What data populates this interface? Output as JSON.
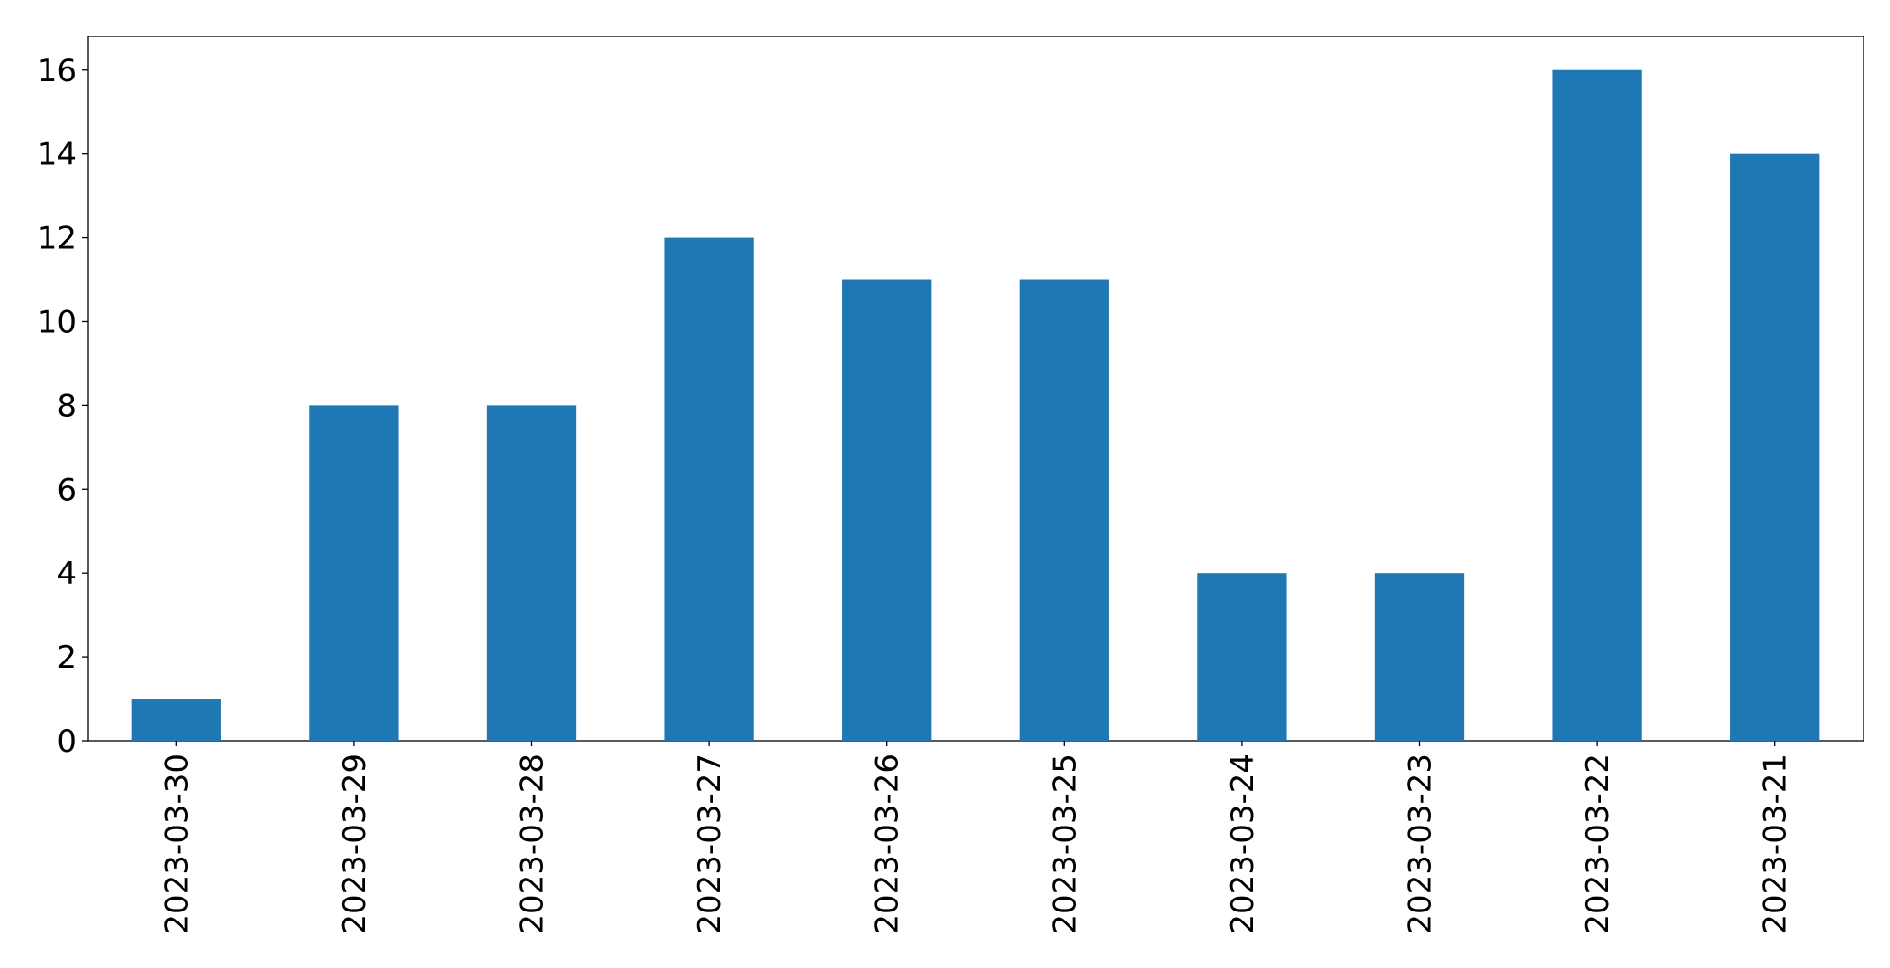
{
  "chart_data": {
    "type": "bar",
    "categories": [
      "2023-03-30",
      "2023-03-29",
      "2023-03-28",
      "2023-03-27",
      "2023-03-26",
      "2023-03-25",
      "2023-03-24",
      "2023-03-23",
      "2023-03-22",
      "2023-03-21"
    ],
    "values": [
      1,
      8,
      8,
      12,
      11,
      11,
      4,
      4,
      16,
      14
    ],
    "color": "#1f77b4",
    "ylim": [
      0,
      16.8
    ],
    "yticks": [
      0,
      2,
      4,
      6,
      8,
      10,
      12,
      14,
      16
    ],
    "grid": false
  }
}
